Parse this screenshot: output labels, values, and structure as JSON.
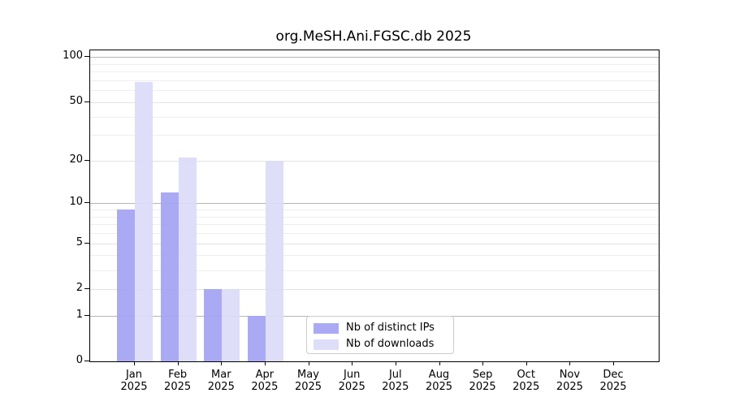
{
  "title": "org.MeSH.Ani.FGSC.db 2025",
  "chart_data": {
    "type": "bar",
    "title": "org.MeSH.Ani.FGSC.db 2025",
    "categories": [
      "Jan",
      "Feb",
      "Mar",
      "Apr",
      "May",
      "Jun",
      "Jul",
      "Aug",
      "Sep",
      "Oct",
      "Nov",
      "Dec"
    ],
    "year": "2025",
    "series": [
      {
        "name": "Nb of distinct IPs",
        "color": "#a4a4f3",
        "values": [
          9,
          12,
          2,
          1,
          0,
          0,
          0,
          0,
          0,
          0,
          0,
          0
        ]
      },
      {
        "name": "Nb of downloads",
        "color": "#dcdcf9",
        "values": [
          68,
          21,
          2,
          20,
          0,
          0,
          0,
          0,
          0,
          0,
          0,
          0
        ]
      }
    ],
    "xlabel": "",
    "ylabel": "",
    "y_scale": "log10(1+v)",
    "ylim": [
      0,
      111
    ],
    "y_major_ticks": [
      100,
      50,
      20,
      10,
      5,
      2,
      1,
      0
    ],
    "y_strong_grid": [
      1,
      10,
      100
    ],
    "y_light_grid": [
      2,
      5,
      20,
      50
    ],
    "y_minor_grid": [
      3,
      4,
      6,
      7,
      8,
      9,
      30,
      40,
      60,
      70,
      80,
      90
    ],
    "grid": true,
    "legend_position": "lower center (inside plot)"
  }
}
